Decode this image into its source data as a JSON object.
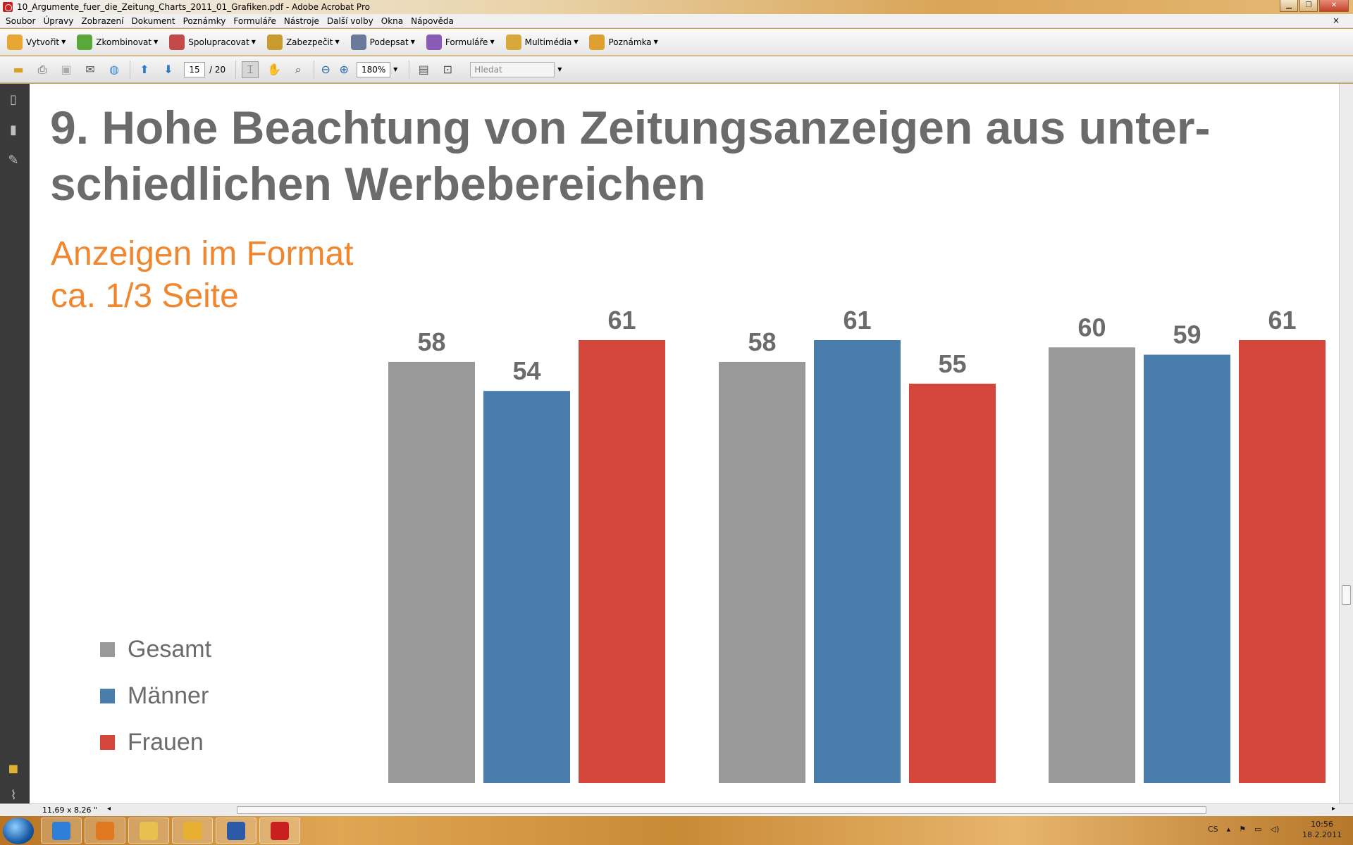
{
  "window": {
    "title": "10_Argumente_fuer_die_Zeitung_Charts_2011_01_Grafiken.pdf - Adobe Acrobat Pro",
    "doc_close": "×"
  },
  "menu": [
    "Soubor",
    "Úpravy",
    "Zobrazení",
    "Dokument",
    "Poznámky",
    "Formuláře",
    "Nástroje",
    "Další volby",
    "Okna",
    "Nápověda"
  ],
  "tasks": [
    {
      "label": "Vytvořit",
      "icon": "create-pdf-icon",
      "color": "#e8a634"
    },
    {
      "label": "Zkombinovat",
      "icon": "combine-icon",
      "color": "#5aa83a"
    },
    {
      "label": "Spolupracovat",
      "icon": "collaborate-icon",
      "color": "#c44a4a"
    },
    {
      "label": "Zabezpečit",
      "icon": "lock-icon",
      "color": "#c99a2e"
    },
    {
      "label": "Podepsat",
      "icon": "pen-icon",
      "color": "#6a7a9a"
    },
    {
      "label": "Formuláře",
      "icon": "forms-icon",
      "color": "#8a5ab8"
    },
    {
      "label": "Multimédia",
      "icon": "multimedia-icon",
      "color": "#d8a83a"
    },
    {
      "label": "Poznámka",
      "icon": "comment-icon",
      "color": "#e0a030"
    }
  ],
  "nav": {
    "page_current": "15",
    "page_total": "/ 20",
    "zoom": "180%",
    "search_placeholder": "Hledat"
  },
  "page": {
    "title": "9. Hohe Beachtung von Zeitungsanzeigen aus unter-schiedlichen Werbebereichen",
    "subtitle": "Anzeigen im Format\nca. 1/3 Seite"
  },
  "chart_data": {
    "type": "bar",
    "categories": [
      "",
      "",
      ""
    ],
    "series": [
      {
        "name": "Gesamt",
        "color": "#999999",
        "values": [
          58,
          58,
          60
        ]
      },
      {
        "name": "Männer",
        "color": "#487dac",
        "values": [
          54,
          61,
          59
        ]
      },
      {
        "name": "Frauen",
        "color": "#d4453a",
        "values": [
          61,
          55,
          61
        ]
      }
    ],
    "ylim": [
      0,
      61
    ],
    "grid": false,
    "legend": "left"
  },
  "status": {
    "page_size": "11,69 x 8,26 \""
  },
  "taskbar": {
    "apps": [
      {
        "name": "ie",
        "color": "#2f7fd8"
      },
      {
        "name": "media-player",
        "color": "#e07820"
      },
      {
        "name": "explorer",
        "color": "#e8c050"
      },
      {
        "name": "outlook",
        "color": "#e8b030"
      },
      {
        "name": "word",
        "color": "#2a5aa8"
      },
      {
        "name": "acrobat",
        "color": "#c8201f"
      }
    ],
    "lang": "CS",
    "time": "10:56",
    "date": "18.2.2011"
  }
}
